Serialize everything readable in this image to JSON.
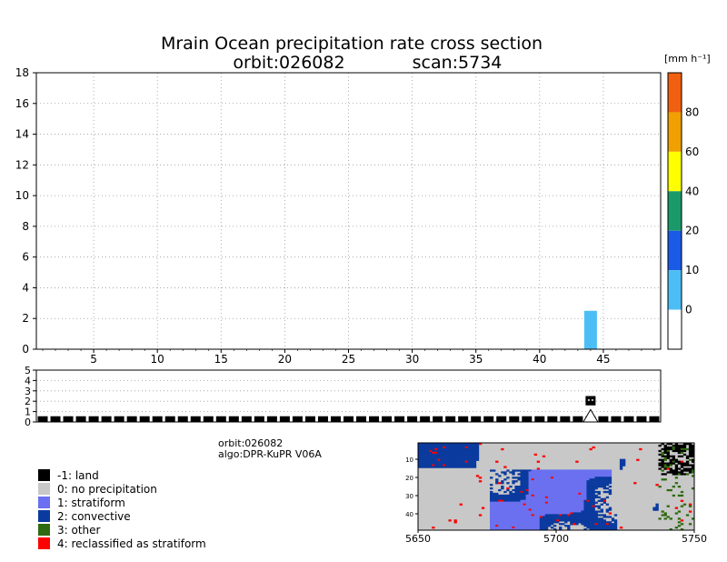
{
  "chart_data": [
    {
      "type": "bar",
      "title": "Mrain Ocean precipitation rate cross section",
      "subtitle_orbit": "orbit:026082",
      "subtitle_scan": "scan:5734",
      "x_ticks": [
        "5",
        "10",
        "15",
        "20",
        "25",
        "30",
        "35",
        "40",
        "45"
      ],
      "y_ticks": [
        "0",
        "2",
        "4",
        "6",
        "8",
        "10",
        "12",
        "14",
        "16",
        "18"
      ],
      "xlim": [
        0.5,
        49.5
      ],
      "ylim": [
        0,
        18
      ],
      "grid": true,
      "bars": [
        {
          "x": 44,
          "y": 2.5,
          "color": "#4dbef5"
        }
      ],
      "colorbar": {
        "unit": "[mm h⁻¹]",
        "labels": [
          "0",
          "10",
          "20",
          "40",
          "60",
          "80"
        ],
        "colors": [
          "#ffffff",
          "#4dbef5",
          "#1a5ae6",
          "#1a9a6a",
          "#ffff00",
          "#f0a000",
          "#f06010"
        ]
      }
    },
    {
      "type": "bar",
      "y_ticks": [
        "0",
        "1",
        "2",
        "3",
        "4",
        "5"
      ],
      "ylim": [
        0,
        5
      ],
      "xlim": [
        0.5,
        49.5
      ],
      "grid": true,
      "description_cells": "per-ray flag: black squares at y=0 for every ray; ray 44 shows two extra squares at y=1 and y=2 with a triangle marker",
      "highlight_x": 44
    },
    {
      "type": "heatmap",
      "x_ticks": [
        "5650",
        "5700",
        "5750"
      ],
      "y_ticks": [
        "10",
        "20",
        "30",
        "40"
      ],
      "xlim": [
        5650,
        5750
      ],
      "ylim": [
        49,
        1
      ]
    }
  ],
  "info": {
    "orbit": "orbit:026082",
    "algo": "algo:DPR-KuPR V06A"
  },
  "legend": [
    {
      "label": "-1: land",
      "color": "#000000"
    },
    {
      "label": "0: no precipitation",
      "color": "#c8c8c8"
    },
    {
      "label": "1: stratiform",
      "color": "#6a70ef"
    },
    {
      "label": "2: convective",
      "color": "#0a3a9e"
    },
    {
      "label": "3: other",
      "color": "#2e6b10"
    },
    {
      "label": "4: reclassified as stratiform",
      "color": "#ff0000"
    }
  ]
}
